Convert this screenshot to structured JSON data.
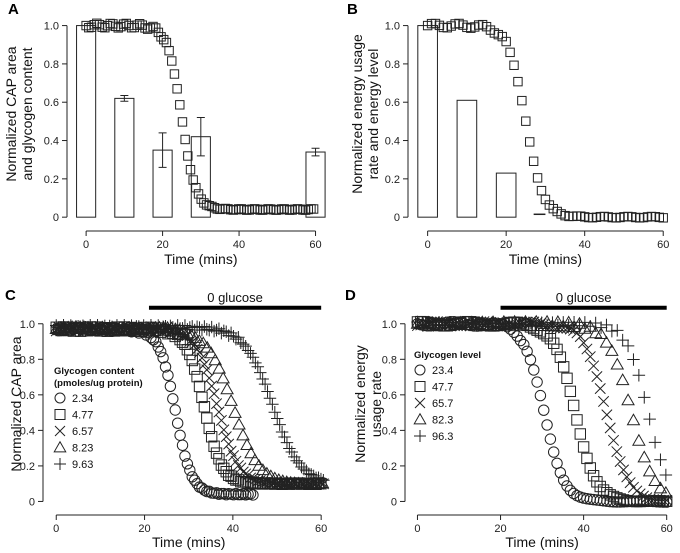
{
  "figure": {
    "panels": [
      "A",
      "B",
      "C",
      "D"
    ]
  },
  "chart_data": [
    {
      "id": "A",
      "type": "bar",
      "overlay": "scatter",
      "ylabel": "Normalized CAP area\nand glycogen content",
      "xlabel": "Time (mins)",
      "xlim": [
        -5,
        63
      ],
      "ylim": [
        -0.02,
        1.05
      ],
      "xticks": [
        0,
        20,
        40,
        60
      ],
      "yticks": [
        0,
        0.2,
        0.4,
        0.6,
        0.8,
        1.0
      ],
      "ytick_labels": [
        "0",
        "0.2",
        "0.4",
        "0.6",
        "0.8",
        "1.0"
      ],
      "bars": [
        {
          "x": 0,
          "value": 1.0,
          "err": 0
        },
        {
          "x": 10,
          "value": 0.62,
          "err": 0.015
        },
        {
          "x": 20,
          "value": 0.35,
          "err": 0.09
        },
        {
          "x": 30,
          "value": 0.42,
          "err": 0.1
        },
        {
          "x": 60,
          "value": 0.34,
          "err": 0.02
        }
      ],
      "bar_width": 5,
      "series": [
        {
          "name": "CAP area",
          "marker": "square",
          "model": {
            "y0": 1.0,
            "yend": 0.04,
            "t50": 25.0,
            "k": 0.55,
            "xstart": 0,
            "xend": 60,
            "step": 0.7
          }
        }
      ]
    },
    {
      "id": "B",
      "type": "bar",
      "overlay": "scatter",
      "ylabel": "Normalized energy usage\nrate and energy level",
      "xlabel": "Time (mins)",
      "xlim": [
        -5,
        63
      ],
      "ylim": [
        -0.02,
        1.05
      ],
      "xticks": [
        0,
        20,
        40,
        60
      ],
      "yticks": [
        0,
        0.2,
        0.4,
        0.6,
        0.8,
        1.0
      ],
      "ytick_labels": [
        "0",
        "0.2",
        "0.4",
        "0.6",
        "0.8",
        "1.0"
      ],
      "bars": [
        {
          "x": 0,
          "value": 1.0
        },
        {
          "x": 10,
          "value": 0.61
        },
        {
          "x": 20,
          "value": 0.23
        }
      ],
      "bar_width": 5,
      "extra_line": {
        "x": [
          27,
          30
        ],
        "y": [
          0.015,
          0.015
        ]
      },
      "series": [
        {
          "name": "Energy usage rate",
          "marker": "square",
          "model": {
            "y0": 1.0,
            "yend": 0.0,
            "t50": 25.0,
            "k": 0.45,
            "xstart": 0,
            "xend": 60,
            "step": 1.0
          }
        }
      ]
    },
    {
      "id": "C",
      "type": "scatter",
      "ylabel": "Normalized CAP area",
      "xlabel": "Time (mins)",
      "xlim": [
        -3,
        62
      ],
      "ylim": [
        -0.02,
        1.1
      ],
      "xticks": [
        0,
        20,
        40,
        60
      ],
      "yticks": [
        0,
        0.2,
        0.4,
        0.6,
        0.8,
        1.0
      ],
      "ytick_labels": [
        "0",
        "0.2",
        "0.4",
        "0.6",
        "0.8",
        "1.0"
      ],
      "glucose_bar": {
        "label": "0 glucose",
        "x": [
          21,
          60
        ],
        "y": 1.09
      },
      "legend_title": "Glycogen content\n(pmoles/ug protein)",
      "series": [
        {
          "name": "2.34",
          "marker": "circle",
          "model": {
            "y0": 0.97,
            "yend": 0.04,
            "t50": 27.0,
            "k": 0.55,
            "xstart": 0,
            "xend": 45,
            "step": 0.55
          }
        },
        {
          "name": "4.77",
          "marker": "square",
          "model": {
            "y0": 0.97,
            "yend": 0.1,
            "t50": 33.5,
            "k": 0.5,
            "xstart": 0,
            "xend": 60,
            "step": 0.55
          }
        },
        {
          "name": "6.57",
          "marker": "x",
          "model": {
            "y0": 0.97,
            "yend": 0.1,
            "t50": 36.5,
            "k": 0.42,
            "xstart": 0,
            "xend": 61,
            "step": 0.55
          }
        },
        {
          "name": "8.23",
          "marker": "triangle",
          "model": {
            "y0": 0.97,
            "yend": 0.1,
            "t50": 40.0,
            "k": 0.35,
            "xstart": 0,
            "xend": 61,
            "step": 0.9
          }
        },
        {
          "name": "9.63",
          "marker": "plus",
          "model": {
            "y0": 0.98,
            "yend": 0.1,
            "t50": 49.0,
            "k": 0.32,
            "xstart": 0,
            "xend": 61,
            "step": 0.55
          }
        }
      ]
    },
    {
      "id": "D",
      "type": "scatter",
      "ylabel": "Normalized energy\nusage rate",
      "xlabel": "Time (mins)",
      "xlim": [
        -3,
        62
      ],
      "ylim": [
        -0.02,
        1.1
      ],
      "xticks": [
        0,
        20,
        40,
        60
      ],
      "yticks": [
        0,
        0.2,
        0.4,
        0.6,
        0.8,
        1.0
      ],
      "ytick_labels": [
        "0",
        "0.2",
        "0.4",
        "0.6",
        "0.8",
        "1.0"
      ],
      "glucose_bar": {
        "label": "0 glucose",
        "x": [
          20,
          60
        ],
        "y": 1.09
      },
      "legend_title": "Glycogen level",
      "series": [
        {
          "name": "23.4",
          "marker": "circle",
          "model": {
            "y0": 1.0,
            "yend": 0.0,
            "t50": 30.5,
            "k": 0.42,
            "xstart": 0,
            "xend": 60,
            "step": 0.8
          }
        },
        {
          "name": "47.7",
          "marker": "square",
          "model": {
            "y0": 1.0,
            "yend": 0.0,
            "t50": 38.0,
            "k": 0.4,
            "xstart": 0,
            "xend": 60,
            "step": 0.8
          }
        },
        {
          "name": "65.7",
          "marker": "x",
          "model": {
            "y0": 1.0,
            "yend": 0.0,
            "t50": 45.5,
            "k": 0.38,
            "xstart": 0,
            "xend": 60,
            "step": 0.8
          }
        },
        {
          "name": "82.3",
          "marker": "triangle",
          "model": {
            "y0": 1.0,
            "yend": 0.0,
            "t50": 51.5,
            "k": 0.36,
            "xstart": 0,
            "xend": 60,
            "step": 1.3
          }
        },
        {
          "name": "96.3",
          "marker": "plus",
          "model": {
            "y0": 1.0,
            "yend": 0.0,
            "t50": 55.5,
            "k": 0.4,
            "xstart": 0,
            "xend": 60,
            "step": 1.3
          }
        }
      ]
    }
  ]
}
